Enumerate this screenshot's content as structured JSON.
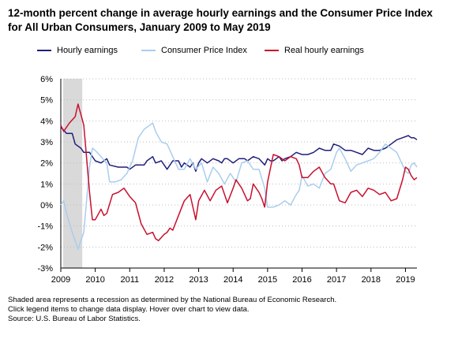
{
  "chart_data": {
    "type": "line",
    "title": "12-month percent change in average hourly earnings and the Consumer Price Index for All Urban Consumers, January 2009 to May 2019",
    "x_start": "2009-01",
    "x_end": "2019-05",
    "x_ticks": [
      "2009",
      "2010",
      "2011",
      "2012",
      "2013",
      "2014",
      "2015",
      "2016",
      "2017",
      "2018",
      "2019"
    ],
    "y_ticks": [
      "-3%",
      "-2%",
      "-1%",
      "0%",
      "1%",
      "2%",
      "3%",
      "4%",
      "5%",
      "6%"
    ],
    "ylim": [
      -3,
      6
    ],
    "grid": "horizontal dotted",
    "legend_position": "top",
    "recession": {
      "start": "2009-01",
      "end": "2009-06"
    },
    "series": [
      {
        "name": "Hourly earnings",
        "color": "#1f1f7a",
        "points": [
          [
            "2009-01",
            3.7
          ],
          [
            "2009-03",
            3.4
          ],
          [
            "2009-05",
            3.4
          ],
          [
            "2009-06",
            2.9
          ],
          [
            "2009-08",
            2.7
          ],
          [
            "2009-09",
            2.5
          ],
          [
            "2009-11",
            2.5
          ],
          [
            "2010-01",
            2.1
          ],
          [
            "2010-03",
            2.0
          ],
          [
            "2010-05",
            2.2
          ],
          [
            "2010-06",
            1.9
          ],
          [
            "2010-09",
            1.8
          ],
          [
            "2010-12",
            1.8
          ],
          [
            "2011-01",
            1.7
          ],
          [
            "2011-03",
            1.9
          ],
          [
            "2011-06",
            1.9
          ],
          [
            "2011-07",
            2.1
          ],
          [
            "2011-09",
            2.3
          ],
          [
            "2011-10",
            2.0
          ],
          [
            "2011-12",
            2.1
          ],
          [
            "2012-01",
            1.9
          ],
          [
            "2012-02",
            1.7
          ],
          [
            "2012-04",
            2.1
          ],
          [
            "2012-06",
            2.1
          ],
          [
            "2012-07",
            1.8
          ],
          [
            "2012-08",
            2.0
          ],
          [
            "2012-10",
            1.8
          ],
          [
            "2012-11",
            2.0
          ],
          [
            "2012-12",
            1.6
          ],
          [
            "2013-01",
            2.0
          ],
          [
            "2013-02",
            2.2
          ],
          [
            "2013-04",
            2.0
          ],
          [
            "2013-06",
            2.2
          ],
          [
            "2013-08",
            2.1
          ],
          [
            "2013-09",
            2.0
          ],
          [
            "2013-10",
            2.2
          ],
          [
            "2013-11",
            2.2
          ],
          [
            "2014-01",
            2.0
          ],
          [
            "2014-03",
            2.2
          ],
          [
            "2014-05",
            2.2
          ],
          [
            "2014-06",
            2.1
          ],
          [
            "2014-08",
            2.3
          ],
          [
            "2014-10",
            2.2
          ],
          [
            "2014-12",
            1.9
          ],
          [
            "2015-01",
            2.2
          ],
          [
            "2015-02",
            2.1
          ],
          [
            "2015-03",
            2.1
          ],
          [
            "2015-04",
            2.2
          ],
          [
            "2015-05",
            2.3
          ],
          [
            "2015-06",
            2.1
          ],
          [
            "2015-07",
            2.2
          ],
          [
            "2015-09",
            2.3
          ],
          [
            "2015-11",
            2.5
          ],
          [
            "2016-01",
            2.4
          ],
          [
            "2016-03",
            2.4
          ],
          [
            "2016-05",
            2.5
          ],
          [
            "2016-07",
            2.7
          ],
          [
            "2016-09",
            2.6
          ],
          [
            "2016-11",
            2.6
          ],
          [
            "2016-12",
            2.9
          ],
          [
            "2017-02",
            2.8
          ],
          [
            "2017-04",
            2.6
          ],
          [
            "2017-06",
            2.6
          ],
          [
            "2017-08",
            2.5
          ],
          [
            "2017-10",
            2.4
          ],
          [
            "2017-12",
            2.7
          ],
          [
            "2018-02",
            2.6
          ],
          [
            "2018-04",
            2.6
          ],
          [
            "2018-06",
            2.7
          ],
          [
            "2018-08",
            2.9
          ],
          [
            "2018-10",
            3.1
          ],
          [
            "2018-12",
            3.2
          ],
          [
            "2019-02",
            3.3
          ],
          [
            "2019-03",
            3.2
          ],
          [
            "2019-04",
            3.2
          ],
          [
            "2019-05",
            3.1
          ]
        ]
      },
      {
        "name": "Consumer Price Index",
        "color": "#a9cdee",
        "points": [
          [
            "2009-01",
            0.0
          ],
          [
            "2009-02",
            0.2
          ],
          [
            "2009-03",
            -0.4
          ],
          [
            "2009-05",
            -1.3
          ],
          [
            "2009-07",
            -2.1
          ],
          [
            "2009-09",
            -1.3
          ],
          [
            "2009-11",
            1.8
          ],
          [
            "2009-12",
            2.7
          ],
          [
            "2010-01",
            2.6
          ],
          [
            "2010-03",
            2.3
          ],
          [
            "2010-05",
            2.0
          ],
          [
            "2010-06",
            1.1
          ],
          [
            "2010-08",
            1.1
          ],
          [
            "2010-10",
            1.2
          ],
          [
            "2010-12",
            1.5
          ],
          [
            "2011-02",
            2.1
          ],
          [
            "2011-04",
            3.2
          ],
          [
            "2011-06",
            3.6
          ],
          [
            "2011-08",
            3.8
          ],
          [
            "2011-09",
            3.9
          ],
          [
            "2011-10",
            3.5
          ],
          [
            "2011-12",
            3.0
          ],
          [
            "2012-02",
            2.9
          ],
          [
            "2012-04",
            2.3
          ],
          [
            "2012-06",
            1.7
          ],
          [
            "2012-08",
            1.7
          ],
          [
            "2012-10",
            2.2
          ],
          [
            "2012-12",
            1.7
          ],
          [
            "2013-02",
            2.0
          ],
          [
            "2013-04",
            1.1
          ],
          [
            "2013-06",
            1.8
          ],
          [
            "2013-08",
            1.5
          ],
          [
            "2013-10",
            1.0
          ],
          [
            "2013-12",
            1.5
          ],
          [
            "2014-02",
            1.1
          ],
          [
            "2014-04",
            2.0
          ],
          [
            "2014-06",
            2.1
          ],
          [
            "2014-08",
            1.7
          ],
          [
            "2014-10",
            1.7
          ],
          [
            "2014-12",
            0.8
          ],
          [
            "2015-01",
            -0.1
          ],
          [
            "2015-03",
            -0.1
          ],
          [
            "2015-05",
            0.0
          ],
          [
            "2015-07",
            0.2
          ],
          [
            "2015-09",
            0.0
          ],
          [
            "2015-11",
            0.5
          ],
          [
            "2015-12",
            0.7
          ],
          [
            "2016-01",
            1.4
          ],
          [
            "2016-03",
            0.9
          ],
          [
            "2016-05",
            1.0
          ],
          [
            "2016-07",
            0.8
          ],
          [
            "2016-09",
            1.5
          ],
          [
            "2016-11",
            1.7
          ],
          [
            "2017-01",
            2.5
          ],
          [
            "2017-02",
            2.7
          ],
          [
            "2017-04",
            2.2
          ],
          [
            "2017-06",
            1.6
          ],
          [
            "2017-08",
            1.9
          ],
          [
            "2017-10",
            2.0
          ],
          [
            "2017-12",
            2.1
          ],
          [
            "2018-02",
            2.2
          ],
          [
            "2018-04",
            2.5
          ],
          [
            "2018-06",
            2.9
          ],
          [
            "2018-08",
            2.7
          ],
          [
            "2018-10",
            2.5
          ],
          [
            "2018-12",
            1.9
          ],
          [
            "2019-01",
            1.6
          ],
          [
            "2019-02",
            1.5
          ],
          [
            "2019-03",
            1.9
          ],
          [
            "2019-04",
            2.0
          ],
          [
            "2019-05",
            1.8
          ]
        ]
      },
      {
        "name": "Real hourly earnings",
        "color": "#c8102e",
        "points": [
          [
            "2009-01",
            3.8
          ],
          [
            "2009-02",
            3.5
          ],
          [
            "2009-04",
            3.9
          ],
          [
            "2009-06",
            4.2
          ],
          [
            "2009-07",
            4.8
          ],
          [
            "2009-08",
            4.3
          ],
          [
            "2009-09",
            3.8
          ],
          [
            "2009-11",
            0.6
          ],
          [
            "2009-12",
            -0.7
          ],
          [
            "2010-01",
            -0.7
          ],
          [
            "2010-03",
            -0.2
          ],
          [
            "2010-04",
            -0.5
          ],
          [
            "2010-05",
            -0.4
          ],
          [
            "2010-07",
            0.5
          ],
          [
            "2010-09",
            0.6
          ],
          [
            "2010-11",
            0.8
          ],
          [
            "2011-01",
            0.4
          ],
          [
            "2011-03",
            0.1
          ],
          [
            "2011-05",
            -0.9
          ],
          [
            "2011-07",
            -1.4
          ],
          [
            "2011-09",
            -1.3
          ],
          [
            "2011-10",
            -1.6
          ],
          [
            "2011-11",
            -1.7
          ],
          [
            "2012-01",
            -1.4
          ],
          [
            "2012-02",
            -1.3
          ],
          [
            "2012-03",
            -1.1
          ],
          [
            "2012-04",
            -1.2
          ],
          [
            "2012-06",
            -0.5
          ],
          [
            "2012-08",
            0.2
          ],
          [
            "2012-10",
            0.5
          ],
          [
            "2012-12",
            -0.7
          ],
          [
            "2013-01",
            0.2
          ],
          [
            "2013-03",
            0.7
          ],
          [
            "2013-05",
            0.2
          ],
          [
            "2013-07",
            0.7
          ],
          [
            "2013-09",
            0.9
          ],
          [
            "2013-11",
            0.1
          ],
          [
            "2014-01",
            0.8
          ],
          [
            "2014-02",
            1.2
          ],
          [
            "2014-04",
            0.8
          ],
          [
            "2014-06",
            0.2
          ],
          [
            "2014-07",
            0.3
          ],
          [
            "2014-08",
            1.0
          ],
          [
            "2014-10",
            0.6
          ],
          [
            "2014-11",
            0.3
          ],
          [
            "2014-12",
            -0.1
          ],
          [
            "2015-01",
            1.1
          ],
          [
            "2015-03",
            2.4
          ],
          [
            "2015-05",
            2.3
          ],
          [
            "2015-07",
            2.1
          ],
          [
            "2015-09",
            2.3
          ],
          [
            "2015-11",
            2.2
          ],
          [
            "2015-12",
            1.9
          ],
          [
            "2016-01",
            1.3
          ],
          [
            "2016-03",
            1.3
          ],
          [
            "2016-05",
            1.6
          ],
          [
            "2016-07",
            1.8
          ],
          [
            "2016-09",
            1.3
          ],
          [
            "2016-11",
            1.0
          ],
          [
            "2016-12",
            1.0
          ],
          [
            "2017-02",
            0.2
          ],
          [
            "2017-04",
            0.1
          ],
          [
            "2017-06",
            0.6
          ],
          [
            "2017-08",
            0.7
          ],
          [
            "2017-10",
            0.4
          ],
          [
            "2017-12",
            0.8
          ],
          [
            "2018-02",
            0.7
          ],
          [
            "2018-04",
            0.5
          ],
          [
            "2018-06",
            0.6
          ],
          [
            "2018-08",
            0.2
          ],
          [
            "2018-10",
            0.3
          ],
          [
            "2018-12",
            1.2
          ],
          [
            "2019-01",
            1.8
          ],
          [
            "2019-02",
            1.7
          ],
          [
            "2019-03",
            1.4
          ],
          [
            "2019-04",
            1.2
          ],
          [
            "2019-05",
            1.3
          ]
        ]
      }
    ]
  },
  "footer": {
    "line1": "Shaded area represents a recession as determined by the National Bureau of Economic Research.",
    "line2": "Click legend items to change data display. Hover over chart to view data.",
    "line3": "Source: U.S. Bureau of Labor Statistics."
  }
}
